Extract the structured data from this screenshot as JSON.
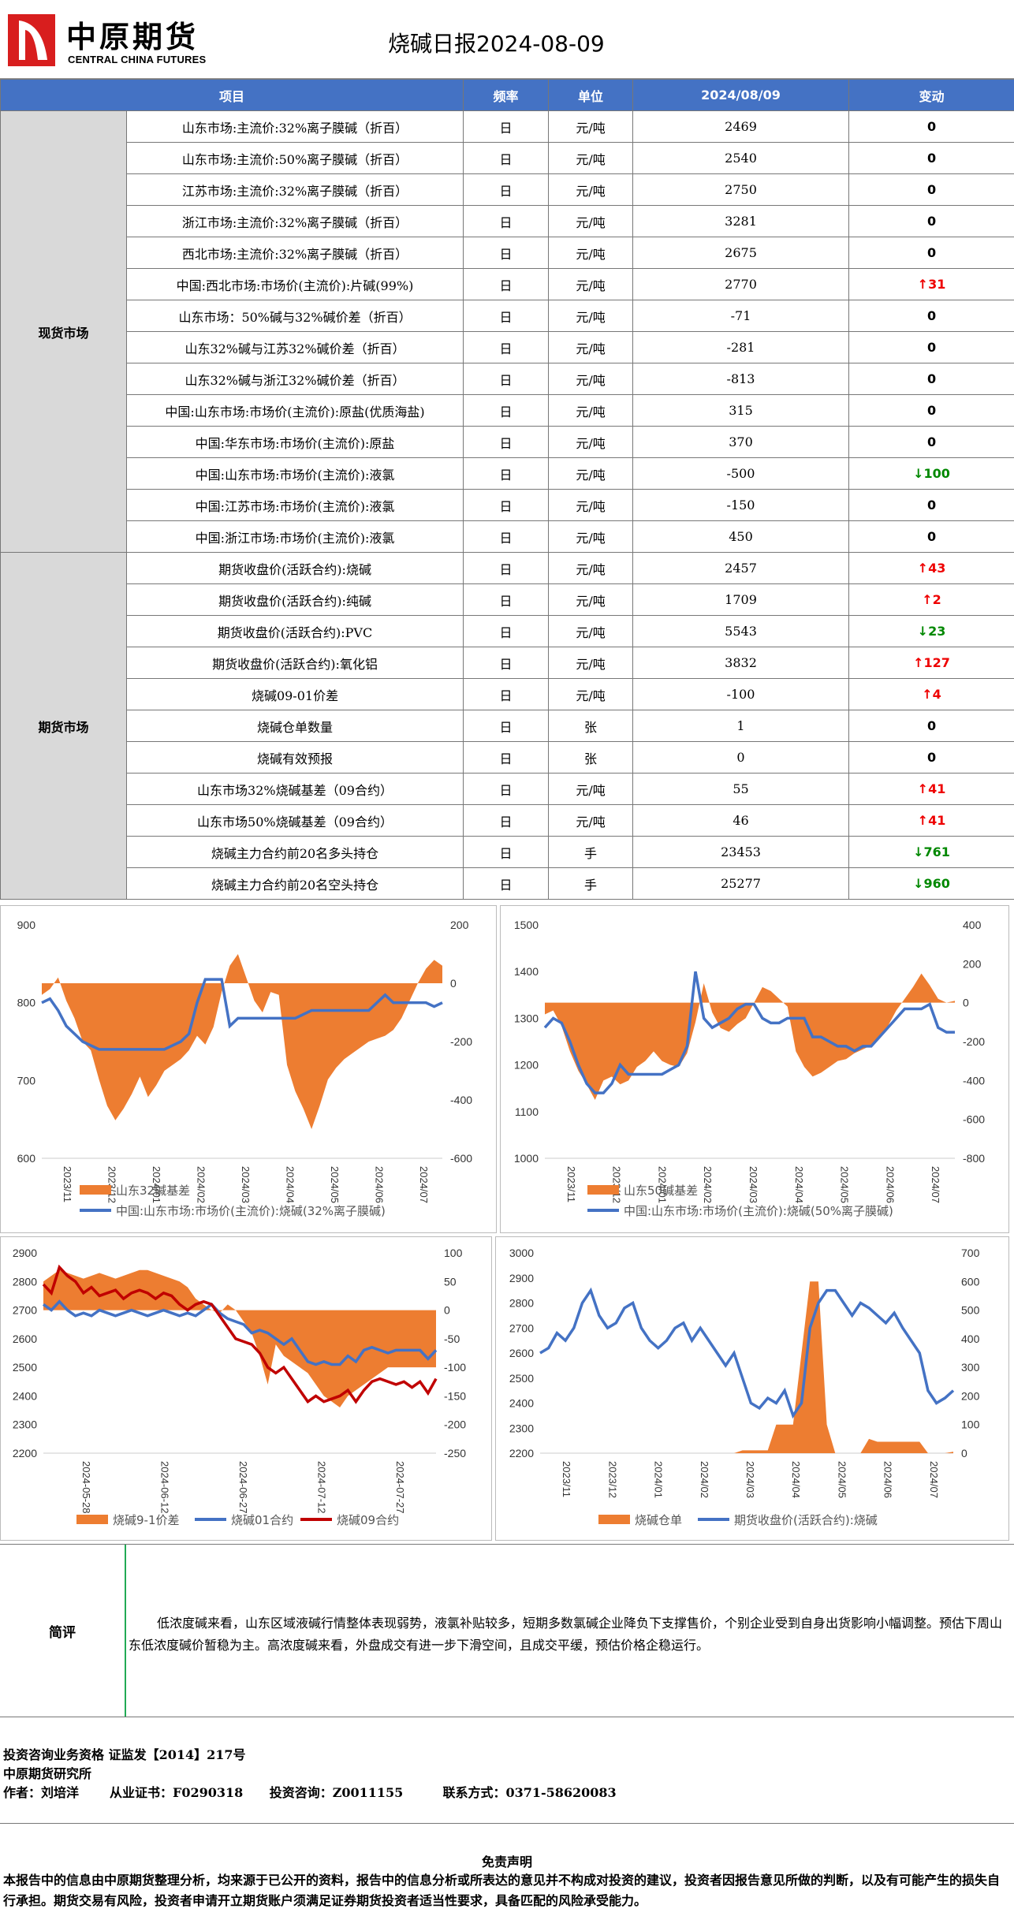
{
  "header": {
    "logo_cn": "中原期货",
    "logo_en": "CENTRAL CHINA FUTURES",
    "title": "烧碱日报2024-08-09"
  },
  "table": {
    "columns": [
      "项目",
      "频率",
      "单位",
      "2024/08/09",
      "变动"
    ],
    "spot_category": "现货市场",
    "futures_category": "期货市场",
    "spot_rows": [
      {
        "item": "山东市场:主流价:32%离子膜碱（折百）",
        "freq": "日",
        "unit": "元/吨",
        "value": "2469",
        "change": "0",
        "dir": "none"
      },
      {
        "item": "山东市场:主流价:50%离子膜碱（折百）",
        "freq": "日",
        "unit": "元/吨",
        "value": "2540",
        "change": "0",
        "dir": "none"
      },
      {
        "item": "江苏市场:主流价:32%离子膜碱（折百）",
        "freq": "日",
        "unit": "元/吨",
        "value": "2750",
        "change": "0",
        "dir": "none"
      },
      {
        "item": "浙江市场:主流价:32%离子膜碱（折百）",
        "freq": "日",
        "unit": "元/吨",
        "value": "3281",
        "change": "0",
        "dir": "none"
      },
      {
        "item": "西北市场:主流价:32%离子膜碱（折百）",
        "freq": "日",
        "unit": "元/吨",
        "value": "2675",
        "change": "0",
        "dir": "none"
      },
      {
        "item": "中国:西北市场:市场价(主流价):片碱(99%)",
        "freq": "日",
        "unit": "元/吨",
        "value": "2770",
        "change": "↑31",
        "dir": "up"
      },
      {
        "item": "山东市场：50%碱与32%碱价差（折百）",
        "freq": "日",
        "unit": "元/吨",
        "value": "-71",
        "change": "0",
        "dir": "none"
      },
      {
        "item": "山东32%碱与江苏32%碱价差（折百）",
        "freq": "日",
        "unit": "元/吨",
        "value": "-281",
        "change": "0",
        "dir": "none"
      },
      {
        "item": "山东32%碱与浙江32%碱价差（折百）",
        "freq": "日",
        "unit": "元/吨",
        "value": "-813",
        "change": "0",
        "dir": "none"
      },
      {
        "item": "中国:山东市场:市场价(主流价):原盐(优质海盐)",
        "freq": "日",
        "unit": "元/吨",
        "value": "315",
        "change": "0",
        "dir": "none"
      },
      {
        "item": "中国:华东市场:市场价(主流价):原盐",
        "freq": "日",
        "unit": "元/吨",
        "value": "370",
        "change": "0",
        "dir": "none"
      },
      {
        "item": "中国:山东市场:市场价(主流价):液氯",
        "freq": "日",
        "unit": "元/吨",
        "value": "-500",
        "change": "↓100",
        "dir": "down"
      },
      {
        "item": "中国:江苏市场:市场价(主流价):液氯",
        "freq": "日",
        "unit": "元/吨",
        "value": "-150",
        "change": "0",
        "dir": "none"
      },
      {
        "item": "中国:浙江市场:市场价(主流价):液氯",
        "freq": "日",
        "unit": "元/吨",
        "value": "450",
        "change": "0",
        "dir": "none"
      }
    ],
    "futures_rows": [
      {
        "item": "期货收盘价(活跃合约):烧碱",
        "freq": "日",
        "unit": "元/吨",
        "value": "2457",
        "change": "↑43",
        "dir": "up"
      },
      {
        "item": "期货收盘价(活跃合约):纯碱",
        "freq": "日",
        "unit": "元/吨",
        "value": "1709",
        "change": "↑2",
        "dir": "up"
      },
      {
        "item": "期货收盘价(活跃合约):PVC",
        "freq": "日",
        "unit": "元/吨",
        "value": "5543",
        "change": "↓23",
        "dir": "down"
      },
      {
        "item": "期货收盘价(活跃合约):氧化铝",
        "freq": "日",
        "unit": "元/吨",
        "value": "3832",
        "change": "↑127",
        "dir": "up"
      },
      {
        "item": "烧碱09-01价差",
        "freq": "日",
        "unit": "元/吨",
        "value": "-100",
        "change": "↑4",
        "dir": "up"
      },
      {
        "item": "烧碱仓单数量",
        "freq": "日",
        "unit": "张",
        "value": "1",
        "change": "0",
        "dir": "none"
      },
      {
        "item": "烧碱有效预报",
        "freq": "日",
        "unit": "张",
        "value": "0",
        "change": "0",
        "dir": "none"
      },
      {
        "item": "山东市场32%烧碱基差（09合约）",
        "freq": "日",
        "unit": "元/吨",
        "value": "55",
        "change": "↑41",
        "dir": "up"
      },
      {
        "item": "山东市场50%烧碱基差（09合约）",
        "freq": "日",
        "unit": "元/吨",
        "value": "46",
        "change": "↑41",
        "dir": "up"
      },
      {
        "item": "烧碱主力合约前20名多头持仓",
        "freq": "日",
        "unit": "手",
        "value": "23453",
        "change": "↓761",
        "dir": "down"
      },
      {
        "item": "烧碱主力合约前20名空头持仓",
        "freq": "日",
        "unit": "手",
        "value": "25277",
        "change": "↓960",
        "dir": "down"
      }
    ]
  },
  "chart_data": [
    {
      "type": "area+line",
      "x_ticks": [
        "2023/11",
        "2023/12",
        "2024/01",
        "2024/02",
        "2024/03",
        "2024/04",
        "2024/05",
        "2024/06",
        "2024/07"
      ],
      "y_left": {
        "min": 600,
        "max": 900,
        "ticks": [
          600,
          700,
          800,
          900
        ]
      },
      "y_right": {
        "min": -600,
        "max": 200,
        "ticks": [
          -600,
          -400,
          -200,
          0,
          200
        ]
      },
      "series": [
        {
          "name": "山东32碱基差",
          "axis": "right",
          "kind": "area",
          "color": "#ed7d31",
          "values": [
            -40,
            -20,
            20,
            -60,
            -120,
            -200,
            -230,
            -330,
            -420,
            -470,
            -430,
            -380,
            -320,
            -390,
            -350,
            -300,
            -280,
            -260,
            -230,
            -180,
            -210,
            -150,
            -30,
            60,
            100,
            20,
            -60,
            -100,
            -30,
            -40,
            -280,
            -370,
            -430,
            -500,
            -420,
            -330,
            -290,
            -260,
            -240,
            -220,
            -200,
            -190,
            -180,
            -160,
            -120,
            -60,
            0,
            50,
            80,
            60
          ]
        },
        {
          "name": "中国:山东市场:市场价(主流价):烧碱(32%离子膜碱)",
          "axis": "left",
          "kind": "line",
          "color": "#4472c4",
          "values": [
            800,
            805,
            790,
            770,
            760,
            750,
            745,
            740,
            740,
            740,
            740,
            740,
            740,
            740,
            740,
            740,
            745,
            750,
            760,
            800,
            830,
            830,
            830,
            770,
            780,
            780,
            780,
            780,
            780,
            780,
            780,
            780,
            785,
            790,
            790,
            790,
            790,
            790,
            790,
            790,
            790,
            800,
            810,
            800,
            800,
            800,
            800,
            800,
            795,
            800
          ]
        }
      ]
    },
    {
      "type": "area+line",
      "x_ticks": [
        "2023/11",
        "2023/12",
        "2024/01",
        "2024/02",
        "2024/03",
        "2024/04",
        "2024/05",
        "2024/06",
        "2024/07"
      ],
      "y_left": {
        "min": 1000,
        "max": 1500,
        "ticks": [
          1000,
          1100,
          1200,
          1300,
          1400,
          1500
        ]
      },
      "y_right": {
        "min": -800,
        "max": 400,
        "ticks": [
          -800,
          -600,
          -400,
          -200,
          0,
          200,
          400
        ]
      },
      "series": [
        {
          "name": "山东50碱基差",
          "axis": "right",
          "kind": "area",
          "color": "#ed7d31",
          "values": [
            -60,
            -40,
            -120,
            -250,
            -350,
            -420,
            -500,
            -400,
            -380,
            -420,
            -400,
            -330,
            -300,
            -250,
            -300,
            -320,
            -330,
            -260,
            -100,
            100,
            -50,
            -130,
            -150,
            -110,
            -80,
            0,
            80,
            60,
            20,
            -20,
            -250,
            -330,
            -380,
            -360,
            -330,
            -300,
            -290,
            -260,
            -240,
            -220,
            -180,
            -120,
            -40,
            20,
            80,
            150,
            90,
            20,
            0,
            10
          ]
        },
        {
          "name": "中国:山东市场:市场价(主流价):烧碱(50%离子膜碱)",
          "axis": "left",
          "kind": "line",
          "color": "#4472c4",
          "values": [
            1280,
            1300,
            1290,
            1250,
            1200,
            1160,
            1140,
            1140,
            1160,
            1200,
            1180,
            1180,
            1180,
            1180,
            1180,
            1190,
            1200,
            1240,
            1400,
            1300,
            1280,
            1290,
            1300,
            1320,
            1330,
            1330,
            1300,
            1290,
            1290,
            1300,
            1300,
            1300,
            1260,
            1260,
            1250,
            1240,
            1240,
            1230,
            1240,
            1240,
            1260,
            1280,
            1300,
            1320,
            1320,
            1320,
            1330,
            1280,
            1270,
            1270
          ]
        }
      ]
    },
    {
      "type": "area+line",
      "x_ticks": [
        "2024-05-28",
        "2024-06-12",
        "2024-06-27",
        "2024-07-12",
        "2024-07-27"
      ],
      "y_left": {
        "min": 2200,
        "max": 2900,
        "ticks": [
          2200,
          2300,
          2400,
          2500,
          2600,
          2700,
          2800,
          2900
        ]
      },
      "y_right": {
        "min": -250,
        "max": 100,
        "ticks": [
          -250,
          -200,
          -150,
          -100,
          -50,
          0,
          50,
          100
        ]
      },
      "series": [
        {
          "name": "烧碱9-1价差",
          "axis": "right",
          "kind": "area",
          "color": "#ed7d31",
          "values": [
            50,
            60,
            70,
            65,
            60,
            55,
            60,
            65,
            60,
            55,
            60,
            65,
            70,
            70,
            65,
            60,
            55,
            50,
            40,
            20,
            10,
            0,
            -5,
            10,
            0,
            -20,
            -40,
            -80,
            -130,
            -60,
            -80,
            -90,
            -100,
            -110,
            -130,
            -150,
            -160,
            -170,
            -150,
            -140,
            -130,
            -120,
            -110,
            -100,
            -100,
            -100,
            -100,
            -100,
            -100,
            -100
          ]
        },
        {
          "name": "烧碱01合约",
          "axis": "left",
          "kind": "line",
          "color": "#4472c4",
          "values": [
            2720,
            2700,
            2730,
            2700,
            2680,
            2690,
            2680,
            2700,
            2690,
            2680,
            2690,
            2700,
            2690,
            2680,
            2690,
            2700,
            2690,
            2680,
            2690,
            2680,
            2700,
            2720,
            2690,
            2670,
            2660,
            2650,
            2620,
            2630,
            2620,
            2600,
            2580,
            2600,
            2560,
            2520,
            2510,
            2520,
            2510,
            2510,
            2540,
            2520,
            2560,
            2570,
            2560,
            2550,
            2560,
            2560,
            2560,
            2560,
            2530,
            2560
          ]
        },
        {
          "name": "烧碱09合约",
          "axis": "left",
          "kind": "line",
          "color": "#c00000",
          "values": [
            2790,
            2760,
            2850,
            2820,
            2800,
            2760,
            2780,
            2750,
            2760,
            2770,
            2740,
            2760,
            2770,
            2760,
            2740,
            2760,
            2750,
            2720,
            2700,
            2720,
            2730,
            2720,
            2680,
            2640,
            2600,
            2590,
            2580,
            2550,
            2500,
            2480,
            2500,
            2460,
            2420,
            2380,
            2400,
            2380,
            2390,
            2400,
            2420,
            2380,
            2420,
            2450,
            2460,
            2450,
            2440,
            2450,
            2430,
            2450,
            2410,
            2460
          ]
        }
      ]
    },
    {
      "type": "area+line",
      "x_ticks": [
        "2023/11",
        "2023/12",
        "2024/01",
        "2024/02",
        "2024/03",
        "2024/04",
        "2024/05",
        "2024/06",
        "2024/07"
      ],
      "y_left": {
        "min": 2200,
        "max": 3000,
        "ticks": [
          2200,
          2300,
          2400,
          2500,
          2600,
          2700,
          2800,
          2900,
          3000
        ]
      },
      "y_right": {
        "min": 0,
        "max": 700,
        "ticks": [
          0,
          100,
          200,
          300,
          400,
          500,
          600,
          700
        ]
      },
      "series": [
        {
          "name": "烧碱仓单",
          "axis": "right",
          "kind": "area",
          "color": "#ed7d31",
          "values": [
            0,
            0,
            0,
            0,
            0,
            0,
            0,
            0,
            0,
            0,
            0,
            0,
            0,
            0,
            0,
            0,
            0,
            0,
            0,
            0,
            0,
            0,
            0,
            0,
            10,
            10,
            10,
            10,
            100,
            100,
            100,
            350,
            600,
            600,
            100,
            0,
            0,
            0,
            0,
            50,
            40,
            40,
            40,
            40,
            40,
            40,
            0,
            0,
            0,
            5
          ]
        },
        {
          "name": "期货收盘价(活跃合约):烧碱",
          "axis": "left",
          "kind": "line",
          "color": "#4472c4",
          "values": [
            2600,
            2620,
            2680,
            2650,
            2700,
            2800,
            2850,
            2750,
            2700,
            2720,
            2780,
            2800,
            2700,
            2650,
            2620,
            2650,
            2700,
            2720,
            2650,
            2700,
            2650,
            2600,
            2550,
            2600,
            2500,
            2400,
            2380,
            2420,
            2400,
            2450,
            2350,
            2400,
            2700,
            2800,
            2850,
            2850,
            2800,
            2750,
            2800,
            2780,
            2750,
            2720,
            2760,
            2700,
            2650,
            2600,
            2450,
            2400,
            2420,
            2450
          ]
        }
      ]
    }
  ],
  "charts": {
    "c1_legend": [
      "山东32碱基差",
      "中国:山东市场:市场价(主流价):烧碱(32%离子膜碱)"
    ],
    "c2_legend": [
      "山东50碱基差",
      "中国:山东市场:市场价(主流价):烧碱(50%离子膜碱)"
    ],
    "c3_legend": [
      "烧碱9-1价差",
      "烧碱01合约",
      "烧碱09合约"
    ],
    "c4_legend": [
      "烧碱仓单",
      "期货收盘价(活跃合约):烧碱"
    ]
  },
  "comment": {
    "label": "简评",
    "text": "低浓度碱来看，山东区域液碱行情整体表现弱势，液氯补贴较多，短期多数氯碱企业降负下支撑售价，个别企业受到自身出货影响小幅调整。预估下周山东低浓度碱价暂稳为主。高浓度碱来看，外盘成交有进一步下滑空间，且成交平缓，预估价格企稳运行。"
  },
  "footer": {
    "line1": "投资咨询业务资格   证监发【2014】217号",
    "line2": "中原期货研究所",
    "line3": "作者：刘培洋       从业证书：F0290318      投资咨询：Z0011155         联系方式：0371-58620083",
    "disclaimer_title": "免责声明",
    "disclaimer": "本报告中的信息由中原期货整理分析，均来源于已公开的资料，报告中的信息分析或所表达的意见并不构成对投资的建议，投资者因报告意见所做的判断，以及有可能产生的损失自行承担。期货交易有风险，投资者申请开立期货账户须满足证券期货投资者适当性要求，具备匹配的风险承受能力。"
  }
}
